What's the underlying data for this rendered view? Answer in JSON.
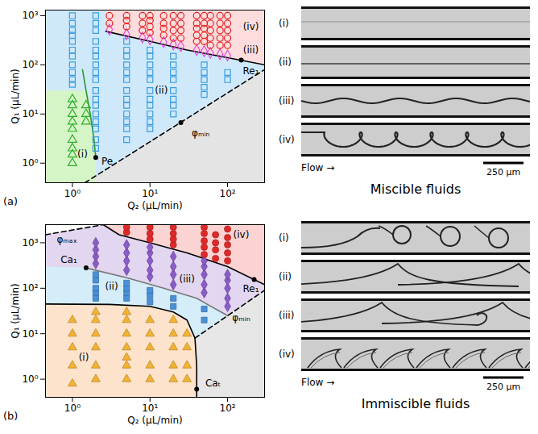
{
  "chart_data": [
    {
      "type": "scatter",
      "title": "(a)",
      "x_label": "Q₂ (μL/min)",
      "y_label": "Q₁ (μL/min)",
      "log": true,
      "grid": false,
      "xlim": [
        0.45,
        300
      ],
      "ylim": [
        0.4,
        1300
      ],
      "xticks": [
        {
          "value": 1,
          "label": "10⁰"
        },
        {
          "value": 10,
          "label": "10¹"
        },
        {
          "value": 100,
          "label": "10²"
        }
      ],
      "yticks": [
        {
          "value": 1,
          "label": "10⁰"
        },
        {
          "value": 10,
          "label": "10¹"
        },
        {
          "value": 100,
          "label": "10²"
        },
        {
          "value": 1000,
          "label": "10³"
        }
      ],
      "regions": [
        {
          "color": "#cfe9fa",
          "x": [
            0.45,
            300,
            300,
            0.45
          ],
          "y": [
            0.4,
            0.4,
            1300,
            1300
          ]
        },
        {
          "color": "#e4e4e4",
          "x": [
            1.45,
            300,
            300
          ],
          "y": [
            0.4,
            0.4,
            80
          ]
        },
        {
          "color": "#d6f5c6",
          "x": [
            0.45,
            2.0,
            2.0,
            1.9,
            1.7,
            1.5,
            0.45
          ],
          "y": [
            0.4,
            0.4,
            1.3,
            3,
            10,
            30,
            30
          ]
        },
        {
          "color": "#fcdcdc",
          "x": [
            2.7,
            2.7,
            10,
            30,
            100,
            300,
            300
          ],
          "y": [
            1300,
            480,
            300,
            200,
            140,
            100,
            1300
          ]
        }
      ],
      "curves": [
        {
          "color": "#2a9a2a",
          "line_style": "solid",
          "x": [
            2.0,
            1.9,
            1.7,
            1.5,
            1.35
          ],
          "y": [
            1.3,
            3,
            10,
            30,
            80
          ]
        },
        {
          "color": "#000000",
          "line_style": "dashed",
          "x": [
            1.45,
            300
          ],
          "y": [
            0.4,
            80
          ]
        },
        {
          "color": "#000000",
          "line_style": "solid",
          "x": [
            2.7,
            10,
            30,
            100,
            300
          ],
          "y": [
            480,
            300,
            200,
            140,
            100
          ]
        }
      ],
      "series": [
        {
          "color": "#2fae2f",
          "marker": "open-triangle",
          "x": [
            1,
            1,
            1,
            1,
            1,
            1,
            1,
            1,
            1,
            1.5,
            1.5,
            1.5
          ],
          "values": [
            1,
            1.5,
            2,
            3,
            5,
            7,
            10,
            15,
            20,
            7,
            10,
            15
          ]
        },
        {
          "color": "#3b9de0",
          "marker": "open-square",
          "x": [
            1,
            1,
            1,
            1,
            1,
            1,
            1,
            1,
            1,
            1,
            1,
            2,
            2,
            2,
            2,
            2,
            2,
            2,
            2,
            2,
            2,
            2,
            2,
            2,
            2,
            2,
            2,
            2,
            5,
            5,
            5,
            5,
            5,
            5,
            5,
            5,
            5,
            5,
            5,
            5,
            5,
            10,
            10,
            10,
            10,
            10,
            10,
            10,
            10,
            10,
            10,
            10,
            20,
            20,
            20,
            20,
            20,
            20,
            20,
            20,
            50,
            50,
            50,
            50,
            50,
            100,
            100
          ],
          "values": [
            40,
            50,
            70,
            100,
            150,
            200,
            300,
            400,
            500,
            700,
            1000,
            2,
            3,
            5,
            7,
            10,
            15,
            20,
            30,
            50,
            70,
            100,
            150,
            200,
            300,
            500,
            700,
            1000,
            3,
            5,
            7,
            10,
            15,
            20,
            30,
            50,
            70,
            100,
            150,
            200,
            300,
            5,
            7,
            10,
            15,
            20,
            30,
            50,
            70,
            100,
            150,
            200,
            10,
            15,
            20,
            30,
            50,
            70,
            100,
            150,
            25,
            35,
            50,
            70,
            100,
            50,
            70
          ]
        },
        {
          "color": "#e04ae0",
          "marker": "open-diamond",
          "x": [
            3,
            5,
            8,
            10,
            15,
            20,
            25,
            40,
            50,
            60,
            80,
            100
          ],
          "values": [
            520,
            420,
            360,
            330,
            290,
            260,
            240,
            200,
            190,
            175,
            165,
            155
          ]
        },
        {
          "color": "#e52222",
          "marker": "open-circle",
          "x": [
            3,
            3,
            5,
            5,
            5,
            8,
            8,
            8,
            10,
            10,
            10,
            10,
            15,
            15,
            15,
            15,
            20,
            20,
            20,
            20,
            25,
            25,
            25,
            25,
            40,
            40,
            40,
            40,
            40,
            50,
            50,
            50,
            50,
            50,
            60,
            60,
            60,
            60,
            60,
            80,
            80,
            80,
            80,
            80,
            100,
            100,
            100,
            100,
            100
          ],
          "values": [
            700,
            1000,
            600,
            800,
            1000,
            500,
            700,
            1000,
            450,
            600,
            800,
            1000,
            400,
            550,
            700,
            1000,
            350,
            500,
            700,
            1000,
            350,
            500,
            700,
            1000,
            300,
            400,
            550,
            700,
            1000,
            300,
            400,
            550,
            700,
            1000,
            250,
            350,
            500,
            700,
            1000,
            250,
            350,
            500,
            700,
            1000,
            250,
            350,
            500,
            700,
            1000
          ]
        }
      ],
      "key_points": {
        "marker": "dot",
        "x": [
          2.0,
          25,
          150
        ],
        "y": [
          1.3,
          6.7,
          125
        ]
      },
      "annotations": [
        {
          "text": "(i)",
          "x": 1.35,
          "y": 1.5
        },
        {
          "text": "(ii)",
          "x": 14,
          "y": 30
        },
        {
          "text": "(iii)",
          "x": 200,
          "y": 200
        },
        {
          "text": "(iv)",
          "x": 200,
          "y": 600
        },
        {
          "text": "Pe",
          "x": 2.8,
          "y": 1.1
        },
        {
          "text": "φₘᵢₙ",
          "x": 45,
          "y": 4
        },
        {
          "text": "Re₁",
          "x": 200,
          "y": 75
        }
      ]
    },
    {
      "type": "scatter",
      "title": "(b)",
      "x_label": "Q₂ (μL/min)",
      "y_label": "Q₁ (μL/min)",
      "log": true,
      "grid": false,
      "xlim": [
        0.45,
        300
      ],
      "ylim": [
        0.4,
        2500
      ],
      "xticks": [
        {
          "value": 1,
          "label": "10⁰"
        },
        {
          "value": 10,
          "label": "10¹"
        },
        {
          "value": 100,
          "label": "10²"
        }
      ],
      "yticks": [
        {
          "value": 1,
          "label": "10⁰"
        },
        {
          "value": 10,
          "label": "10¹"
        },
        {
          "value": 100,
          "label": "10²"
        },
        {
          "value": 1000,
          "label": "10³"
        }
      ],
      "regions": [
        {
          "color": "#e6e6e6",
          "x": [
            0.45,
            300,
            300,
            0.45
          ],
          "y": [
            0.4,
            0.4,
            2500,
            2500
          ]
        },
        {
          "color": "#ffffff",
          "x": [
            0.45,
            2.5,
            0.45
          ],
          "y": [
            1500,
            2500,
            2500
          ]
        },
        {
          "color": "#fbd3d3",
          "x": [
            2.5,
            4,
            10,
            30,
            100,
            300,
            300
          ],
          "y": [
            2500,
            1500,
            1000,
            600,
            300,
            120,
            2500
          ]
        },
        {
          "color": "#e2d6f0",
          "x": [
            0.45,
            1.5,
            5,
            15,
            40,
            100,
            300,
            300,
            100,
            30,
            10,
            4,
            2.5,
            0.45
          ],
          "y": [
            300,
            280,
            170,
            100,
            60,
            25,
            90,
            120,
            300,
            600,
            1000,
            1500,
            2500,
            1500
          ]
        },
        {
          "color": "#d5ecf9",
          "x": [
            0.45,
            3,
            10,
            20,
            30,
            38,
            100,
            40,
            15,
            5,
            1.5,
            0.45
          ],
          "y": [
            45,
            44,
            40,
            30,
            20,
            8,
            25,
            60,
            100,
            170,
            280,
            300
          ]
        },
        {
          "color": "#fde3cc",
          "x": [
            0.45,
            40,
            40,
            38,
            30,
            20,
            10,
            3,
            0.45
          ],
          "y": [
            0.4,
            0.4,
            2,
            8,
            20,
            30,
            40,
            44,
            45
          ]
        }
      ],
      "curves": [
        {
          "color": "#000000",
          "line_style": "solid",
          "x": [
            40,
            40,
            38,
            30,
            20,
            10,
            3,
            0.45
          ],
          "y": [
            0.4,
            2,
            8,
            20,
            30,
            40,
            44,
            45
          ]
        },
        {
          "color": "#777777",
          "line_style": "solid",
          "x": [
            1.5,
            5,
            15,
            40,
            100
          ],
          "y": [
            280,
            170,
            100,
            60,
            25
          ]
        },
        {
          "color": "#000000",
          "line_style": "dashed",
          "x": [
            38,
            300
          ],
          "y": [
            8,
            90
          ]
        },
        {
          "color": "#000000",
          "line_style": "dashed",
          "x": [
            0.45,
            2.5
          ],
          "y": [
            1500,
            2500
          ]
        },
        {
          "color": "#000000",
          "line_style": "solid",
          "x": [
            2.5,
            4,
            10,
            30,
            100,
            300
          ],
          "y": [
            2500,
            1500,
            1000,
            600,
            300,
            120
          ]
        }
      ],
      "series": [
        {
          "color": "#f2b233",
          "marker": "triangle",
          "x": [
            1,
            1,
            1,
            1,
            1,
            2,
            2,
            2,
            2,
            2,
            2,
            5,
            5,
            5,
            5,
            5,
            5,
            5,
            10,
            10,
            10,
            10,
            10,
            20,
            20,
            20,
            20,
            20,
            30,
            30,
            30,
            30
          ],
          "values": [
            0.8,
            2,
            5,
            10,
            20,
            1,
            2,
            5,
            10,
            20,
            30,
            1,
            2,
            3,
            5,
            10,
            20,
            30,
            1,
            2,
            5,
            10,
            20,
            1,
            2,
            5,
            10,
            20,
            1,
            2,
            5,
            10
          ]
        },
        {
          "color": "#4a90d9",
          "marker": "square",
          "x": [
            2,
            2,
            2,
            2,
            2,
            5,
            5,
            5,
            5,
            10,
            10,
            10,
            20,
            20,
            50,
            50
          ],
          "values": [
            60,
            80,
            100,
            150,
            200,
            60,
            80,
            100,
            130,
            50,
            70,
            90,
            40,
            60,
            20,
            35
          ]
        },
        {
          "color": "#8a5cc8",
          "marker": "diamond",
          "x": [
            2,
            2,
            2,
            2,
            5,
            5,
            5,
            5,
            10,
            10,
            10,
            10,
            10,
            20,
            20,
            20,
            20,
            50,
            50,
            50,
            50,
            50,
            100,
            100,
            100,
            100,
            100
          ],
          "values": [
            350,
            500,
            700,
            1000,
            250,
            400,
            600,
            900,
            180,
            250,
            400,
            600,
            800,
            120,
            200,
            300,
            500,
            80,
            120,
            200,
            300,
            400,
            40,
            60,
            100,
            150,
            200
          ]
        },
        {
          "color": "#e02828",
          "marker": "circle",
          "x": [
            5,
            5,
            10,
            10,
            10,
            20,
            20,
            20,
            20,
            50,
            50,
            50,
            50,
            50,
            70,
            70,
            70,
            70,
            100,
            100,
            100,
            100,
            100
          ],
          "values": [
            1700,
            2200,
            1200,
            1600,
            2200,
            900,
            1200,
            1600,
            2200,
            550,
            800,
            1100,
            1600,
            2200,
            450,
            700,
            1000,
            1500,
            400,
            600,
            900,
            1300,
            2000
          ]
        }
      ],
      "key_points": {
        "marker": "dot",
        "x": [
          1.5,
          40,
          220
        ],
        "y": [
          280,
          0.6,
          155
        ]
      },
      "annotations": [
        {
          "text": "(i)",
          "x": 1.4,
          "y": 3
        },
        {
          "text": "(ii)",
          "x": 3.2,
          "y": 110
        },
        {
          "text": "(iii)",
          "x": 30,
          "y": 160
        },
        {
          "text": "(iv)",
          "x": 150,
          "y": 1500
        },
        {
          "text": "Ca₁",
          "x": 0.9,
          "y": 420
        },
        {
          "text": "φₘₐₓ",
          "x": 0.85,
          "y": 1150
        },
        {
          "text": "Caₜ",
          "x": 65,
          "y": 0.8
        },
        {
          "text": "Re₁",
          "x": 200,
          "y": 95
        },
        {
          "text": "φₘᵢₙ",
          "x": 150,
          "y": 22
        }
      ]
    }
  ],
  "images": [
    {
      "rows": [
        "(i)",
        "(ii)",
        "(iii)",
        "(iv)"
      ],
      "flow": "Flow →",
      "scale_bar": "250 μm",
      "caption": "Miscible fluids"
    },
    {
      "rows": [
        "(i)",
        "(ii)",
        "(iii)",
        "(iv)"
      ],
      "flow": "Flow →",
      "scale_bar": "250 μm",
      "caption": "Immiscible fluids"
    }
  ]
}
